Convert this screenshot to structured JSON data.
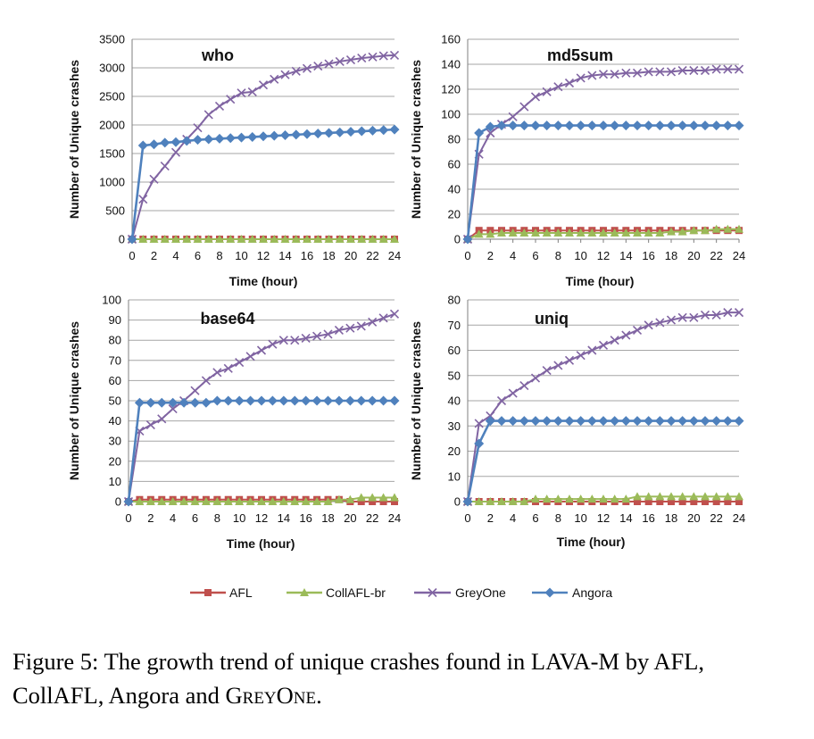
{
  "chart_data": [
    {
      "type": "line",
      "title": "who",
      "xlabel": "Time (hour)",
      "ylabel": "Number of Unique crashes",
      "xlim": [
        0,
        24
      ],
      "ylim": [
        0,
        3500
      ],
      "xticks": [
        0,
        2,
        4,
        6,
        8,
        10,
        12,
        14,
        16,
        18,
        20,
        22,
        24
      ],
      "yticks": [
        0,
        500,
        1000,
        1500,
        2000,
        2500,
        3000,
        3500
      ],
      "grid": true,
      "x": [
        0,
        1,
        2,
        3,
        4,
        5,
        6,
        7,
        8,
        9,
        10,
        11,
        12,
        13,
        14,
        15,
        16,
        17,
        18,
        19,
        20,
        21,
        22,
        23,
        24
      ],
      "series": [
        {
          "name": "AFL",
          "values": [
            0,
            0,
            0,
            0,
            0,
            0,
            0,
            0,
            0,
            0,
            0,
            0,
            0,
            0,
            0,
            0,
            0,
            0,
            0,
            0,
            0,
            0,
            0,
            0,
            0
          ]
        },
        {
          "name": "CollAFL-br",
          "values": [
            0,
            0,
            0,
            0,
            0,
            0,
            0,
            0,
            0,
            0,
            0,
            0,
            0,
            0,
            0,
            0,
            0,
            0,
            0,
            0,
            0,
            0,
            0,
            0,
            0
          ]
        },
        {
          "name": "GreyOne",
          "values": [
            0,
            700,
            1050,
            1280,
            1520,
            1750,
            1950,
            2180,
            2330,
            2450,
            2560,
            2580,
            2700,
            2800,
            2880,
            2940,
            2990,
            3030,
            3070,
            3110,
            3140,
            3170,
            3190,
            3210,
            3220
          ]
        },
        {
          "name": "Angora",
          "values": [
            0,
            1640,
            1660,
            1690,
            1700,
            1720,
            1740,
            1750,
            1760,
            1770,
            1780,
            1790,
            1800,
            1810,
            1820,
            1830,
            1840,
            1850,
            1860,
            1870,
            1880,
            1890,
            1900,
            1910,
            1920
          ]
        }
      ]
    },
    {
      "type": "line",
      "title": "md5sum",
      "xlabel": "Time (hour)",
      "ylabel": "Number of Unique crashes",
      "xlim": [
        0,
        24
      ],
      "ylim": [
        0,
        160
      ],
      "xticks": [
        0,
        2,
        4,
        6,
        8,
        10,
        12,
        14,
        16,
        18,
        20,
        22,
        24
      ],
      "yticks": [
        0,
        20,
        40,
        60,
        80,
        100,
        120,
        140,
        160
      ],
      "grid": true,
      "x": [
        0,
        1,
        2,
        3,
        4,
        5,
        6,
        7,
        8,
        9,
        10,
        11,
        12,
        13,
        14,
        15,
        16,
        17,
        18,
        19,
        20,
        21,
        22,
        23,
        24
      ],
      "series": [
        {
          "name": "AFL",
          "values": [
            0,
            7,
            7,
            7,
            7,
            7,
            7,
            7,
            7,
            7,
            7,
            7,
            7,
            7,
            7,
            7,
            7,
            7,
            7,
            7,
            7,
            7,
            7,
            7,
            7
          ]
        },
        {
          "name": "CollAFL-br",
          "values": [
            0,
            4,
            4,
            5,
            5,
            5,
            5,
            5,
            5,
            5,
            5,
            5,
            5,
            5,
            5,
            5,
            5,
            5,
            6,
            6,
            7,
            7,
            8,
            8,
            8
          ]
        },
        {
          "name": "GreyOne",
          "values": [
            0,
            68,
            85,
            92,
            98,
            106,
            114,
            118,
            122,
            125,
            129,
            131,
            132,
            132,
            133,
            133,
            134,
            134,
            134,
            135,
            135,
            135,
            136,
            136,
            136
          ]
        },
        {
          "name": "Angora",
          "values": [
            0,
            85,
            90,
            91,
            91,
            91,
            91,
            91,
            91,
            91,
            91,
            91,
            91,
            91,
            91,
            91,
            91,
            91,
            91,
            91,
            91,
            91,
            91,
            91,
            91
          ]
        }
      ]
    },
    {
      "type": "line",
      "title": "base64",
      "xlabel": "Time (hour)",
      "ylabel": "Number of Unique crashes",
      "xlim": [
        0,
        24
      ],
      "ylim": [
        0,
        100
      ],
      "xticks": [
        0,
        2,
        4,
        6,
        8,
        10,
        12,
        14,
        16,
        18,
        20,
        22,
        24
      ],
      "yticks": [
        0,
        10,
        20,
        30,
        40,
        50,
        60,
        70,
        80,
        90,
        100
      ],
      "grid": true,
      "x": [
        0,
        1,
        2,
        3,
        4,
        5,
        6,
        7,
        8,
        9,
        10,
        11,
        12,
        13,
        14,
        15,
        16,
        17,
        18,
        19,
        20,
        21,
        22,
        23,
        24
      ],
      "series": [
        {
          "name": "AFL",
          "values": [
            0,
            1,
            1,
            1,
            1,
            1,
            1,
            1,
            1,
            1,
            1,
            1,
            1,
            1,
            1,
            1,
            1,
            1,
            1,
            1,
            0,
            0,
            0,
            0,
            0
          ]
        },
        {
          "name": "CollAFL-br",
          "values": [
            0,
            0,
            0,
            0,
            0,
            0,
            0,
            0,
            0,
            0,
            0,
            0,
            0,
            0,
            0,
            0,
            0,
            0,
            0,
            1,
            1,
            2,
            2,
            2,
            2
          ]
        },
        {
          "name": "GreyOne",
          "values": [
            0,
            35,
            38,
            41,
            46,
            50,
            55,
            60,
            64,
            66,
            69,
            72,
            75,
            78,
            80,
            80,
            81,
            82,
            83,
            85,
            86,
            87,
            89,
            91,
            93
          ]
        },
        {
          "name": "Angora",
          "values": [
            0,
            49,
            49,
            49,
            49,
            49,
            49,
            49,
            50,
            50,
            50,
            50,
            50,
            50,
            50,
            50,
            50,
            50,
            50,
            50,
            50,
            50,
            50,
            50,
            50
          ]
        }
      ]
    },
    {
      "type": "line",
      "title": "uniq",
      "xlabel": "Time (hour)",
      "ylabel": "Number of Unique crashes",
      "xlim": [
        0,
        24
      ],
      "ylim": [
        0,
        80
      ],
      "xticks": [
        0,
        2,
        4,
        6,
        8,
        10,
        12,
        14,
        16,
        18,
        20,
        22,
        24
      ],
      "yticks": [
        0,
        10,
        20,
        30,
        40,
        50,
        60,
        70,
        80
      ],
      "grid": true,
      "x": [
        0,
        1,
        2,
        3,
        4,
        5,
        6,
        7,
        8,
        9,
        10,
        11,
        12,
        13,
        14,
        15,
        16,
        17,
        18,
        19,
        20,
        21,
        22,
        23,
        24
      ],
      "series": [
        {
          "name": "AFL",
          "values": [
            0,
            0,
            0,
            0,
            0,
            0,
            0,
            0,
            0,
            0,
            0,
            0,
            0,
            0,
            0,
            0,
            0,
            0,
            0,
            0,
            0,
            0,
            0,
            0,
            0
          ]
        },
        {
          "name": "CollAFL-br",
          "values": [
            0,
            0,
            0,
            0,
            0,
            0,
            1,
            1,
            1,
            1,
            1,
            1,
            1,
            1,
            1,
            2,
            2,
            2,
            2,
            2,
            2,
            2,
            2,
            2,
            2
          ]
        },
        {
          "name": "GreyOne",
          "values": [
            0,
            31,
            34,
            40,
            43,
            46,
            49,
            52,
            54,
            56,
            58,
            60,
            62,
            64,
            66,
            68,
            70,
            71,
            72,
            73,
            73,
            74,
            74,
            75,
            75
          ]
        },
        {
          "name": "Angora",
          "values": [
            0,
            23,
            32,
            32,
            32,
            32,
            32,
            32,
            32,
            32,
            32,
            32,
            32,
            32,
            32,
            32,
            32,
            32,
            32,
            32,
            32,
            32,
            32,
            32,
            32
          ]
        }
      ]
    }
  ],
  "legend": {
    "placement": "bottom",
    "items": [
      {
        "label": "AFL",
        "color": "#c0504d",
        "marker": "square"
      },
      {
        "label": "CollAFL-br",
        "color": "#9bbb59",
        "marker": "triangle"
      },
      {
        "label": "GreyOne",
        "color": "#8064a2",
        "marker": "x"
      },
      {
        "label": "Angora",
        "color": "#4f81bd",
        "marker": "diamond"
      }
    ]
  },
  "colors": {
    "AFL": "#c0504d",
    "CollAFL-br": "#9bbb59",
    "GreyOne": "#8064a2",
    "Angora": "#4f81bd",
    "grid": "#a6a6a6"
  },
  "caption": {
    "main": "Figure 5: The growth trend of unique crashes found in LAVA-M by AFL, CollAFL, Angora and ",
    "greyone_first": "G",
    "greyone_rest_small": "REY",
    "greyone_o": "O",
    "greyone_rest_small2": "NE",
    "end": "."
  }
}
